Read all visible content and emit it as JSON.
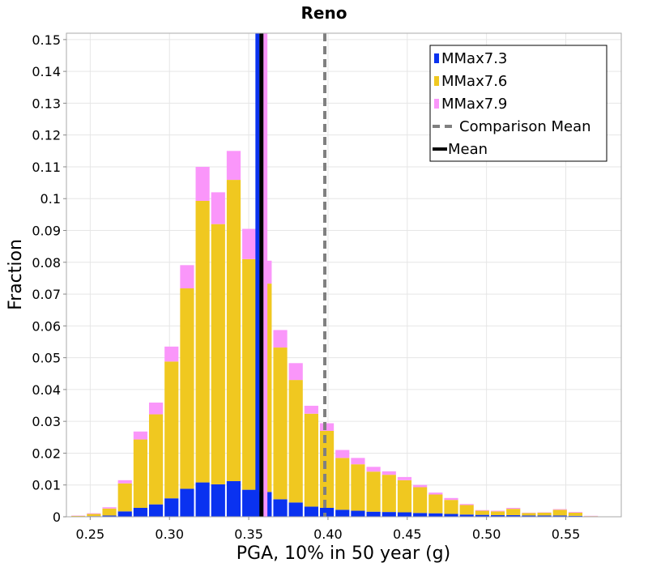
{
  "chart_data": {
    "type": "bar",
    "stacked": true,
    "title": "Reno",
    "xlabel": "PGA, 10% in 50 year (g)",
    "ylabel": "Fraction",
    "xlim": [
      0.235,
      0.585
    ],
    "ylim": [
      0,
      0.152
    ],
    "bin_width": 0.0098,
    "x_ticks": [
      "0.25",
      "0.30",
      "0.35",
      "0.40",
      "0.45",
      "0.50",
      "0.55"
    ],
    "y_ticks": [
      "0",
      "0.01",
      "0.02",
      "0.03",
      "0.04",
      "0.05",
      "0.06",
      "0.07",
      "0.08",
      "0.09",
      "0.1",
      "0.11",
      "0.12",
      "0.13",
      "0.14",
      "0.15"
    ],
    "x": [
      0.2425,
      0.2523,
      0.2621,
      0.2719,
      0.2817,
      0.2915,
      0.3013,
      0.3111,
      0.3209,
      0.3307,
      0.3405,
      0.3503,
      0.3601,
      0.3699,
      0.3797,
      0.3895,
      0.3993,
      0.4091,
      0.4189,
      0.4287,
      0.4385,
      0.4483,
      0.4581,
      0.4679,
      0.4777,
      0.4875,
      0.4973,
      0.5071,
      0.5169,
      0.5267,
      0.5365,
      0.5463,
      0.5561,
      0.5659,
      0.5757
    ],
    "series": [
      {
        "name": "MMax7.3",
        "color": "#0a32f0",
        "values": [
          0,
          0.0002,
          0.0004,
          0.0017,
          0.0028,
          0.0039,
          0.0058,
          0.0088,
          0.0108,
          0.0102,
          0.0112,
          0.0085,
          0.0078,
          0.0055,
          0.0045,
          0.0032,
          0.0028,
          0.0022,
          0.0019,
          0.0016,
          0.0015,
          0.0014,
          0.0012,
          0.0011,
          0.0009,
          0.0007,
          0.0006,
          0.0005,
          0.0005,
          0.0004,
          0.0004,
          0.0004,
          0.0003,
          0.0001,
          0
        ]
      },
      {
        "name": "MMax7.6",
        "color": "#f0c820",
        "values": [
          0.0003,
          0.0007,
          0.0022,
          0.0088,
          0.0215,
          0.0283,
          0.043,
          0.063,
          0.0885,
          0.0818,
          0.0947,
          0.0725,
          0.0655,
          0.0477,
          0.0385,
          0.0292,
          0.0242,
          0.0163,
          0.0146,
          0.0126,
          0.0117,
          0.0101,
          0.0081,
          0.0059,
          0.0044,
          0.003,
          0.0013,
          0.0012,
          0.002,
          0.0008,
          0.0009,
          0.0018,
          0.001,
          0.0001,
          0
        ]
      },
      {
        "name": "MMax7.9",
        "color": "#fa96fa",
        "values": [
          0.0001,
          0.0002,
          0.0004,
          0.001,
          0.0025,
          0.0037,
          0.0047,
          0.0073,
          0.0107,
          0.01,
          0.0091,
          0.0095,
          0.0072,
          0.0055,
          0.0053,
          0.0025,
          0.0024,
          0.0025,
          0.002,
          0.0015,
          0.0011,
          0.001,
          0.0007,
          0.0006,
          0.0006,
          0.0003,
          0.0002,
          0.0002,
          0.0003,
          0.0001,
          0.0001,
          0.0002,
          0.0002,
          0.0001,
          0
        ]
      }
    ],
    "lines": [
      {
        "name": "Comparison Mean",
        "x": 0.398,
        "style": "dashed",
        "color": "#808080"
      },
      {
        "name": "Mean",
        "x": 0.358,
        "style": "solid",
        "color": "#000000"
      }
    ],
    "extra_vlines": [
      {
        "x": 0.3555,
        "color": "#0a32f0"
      },
      {
        "x": 0.3605,
        "color": "#fa96fa"
      }
    ],
    "legend": {
      "placement": "top-right",
      "entries": [
        {
          "label": "MMax7.3",
          "kind": "bar",
          "color": "#0a32f0"
        },
        {
          "label": "MMax7.6",
          "kind": "bar",
          "color": "#f0c820"
        },
        {
          "label": "MMax7.9",
          "kind": "bar",
          "color": "#fa96fa"
        },
        {
          "label": "Comparison Mean",
          "kind": "dashed-line",
          "color": "#808080"
        },
        {
          "label": "Mean",
          "kind": "line",
          "color": "#000000"
        }
      ]
    },
    "grid": true
  }
}
